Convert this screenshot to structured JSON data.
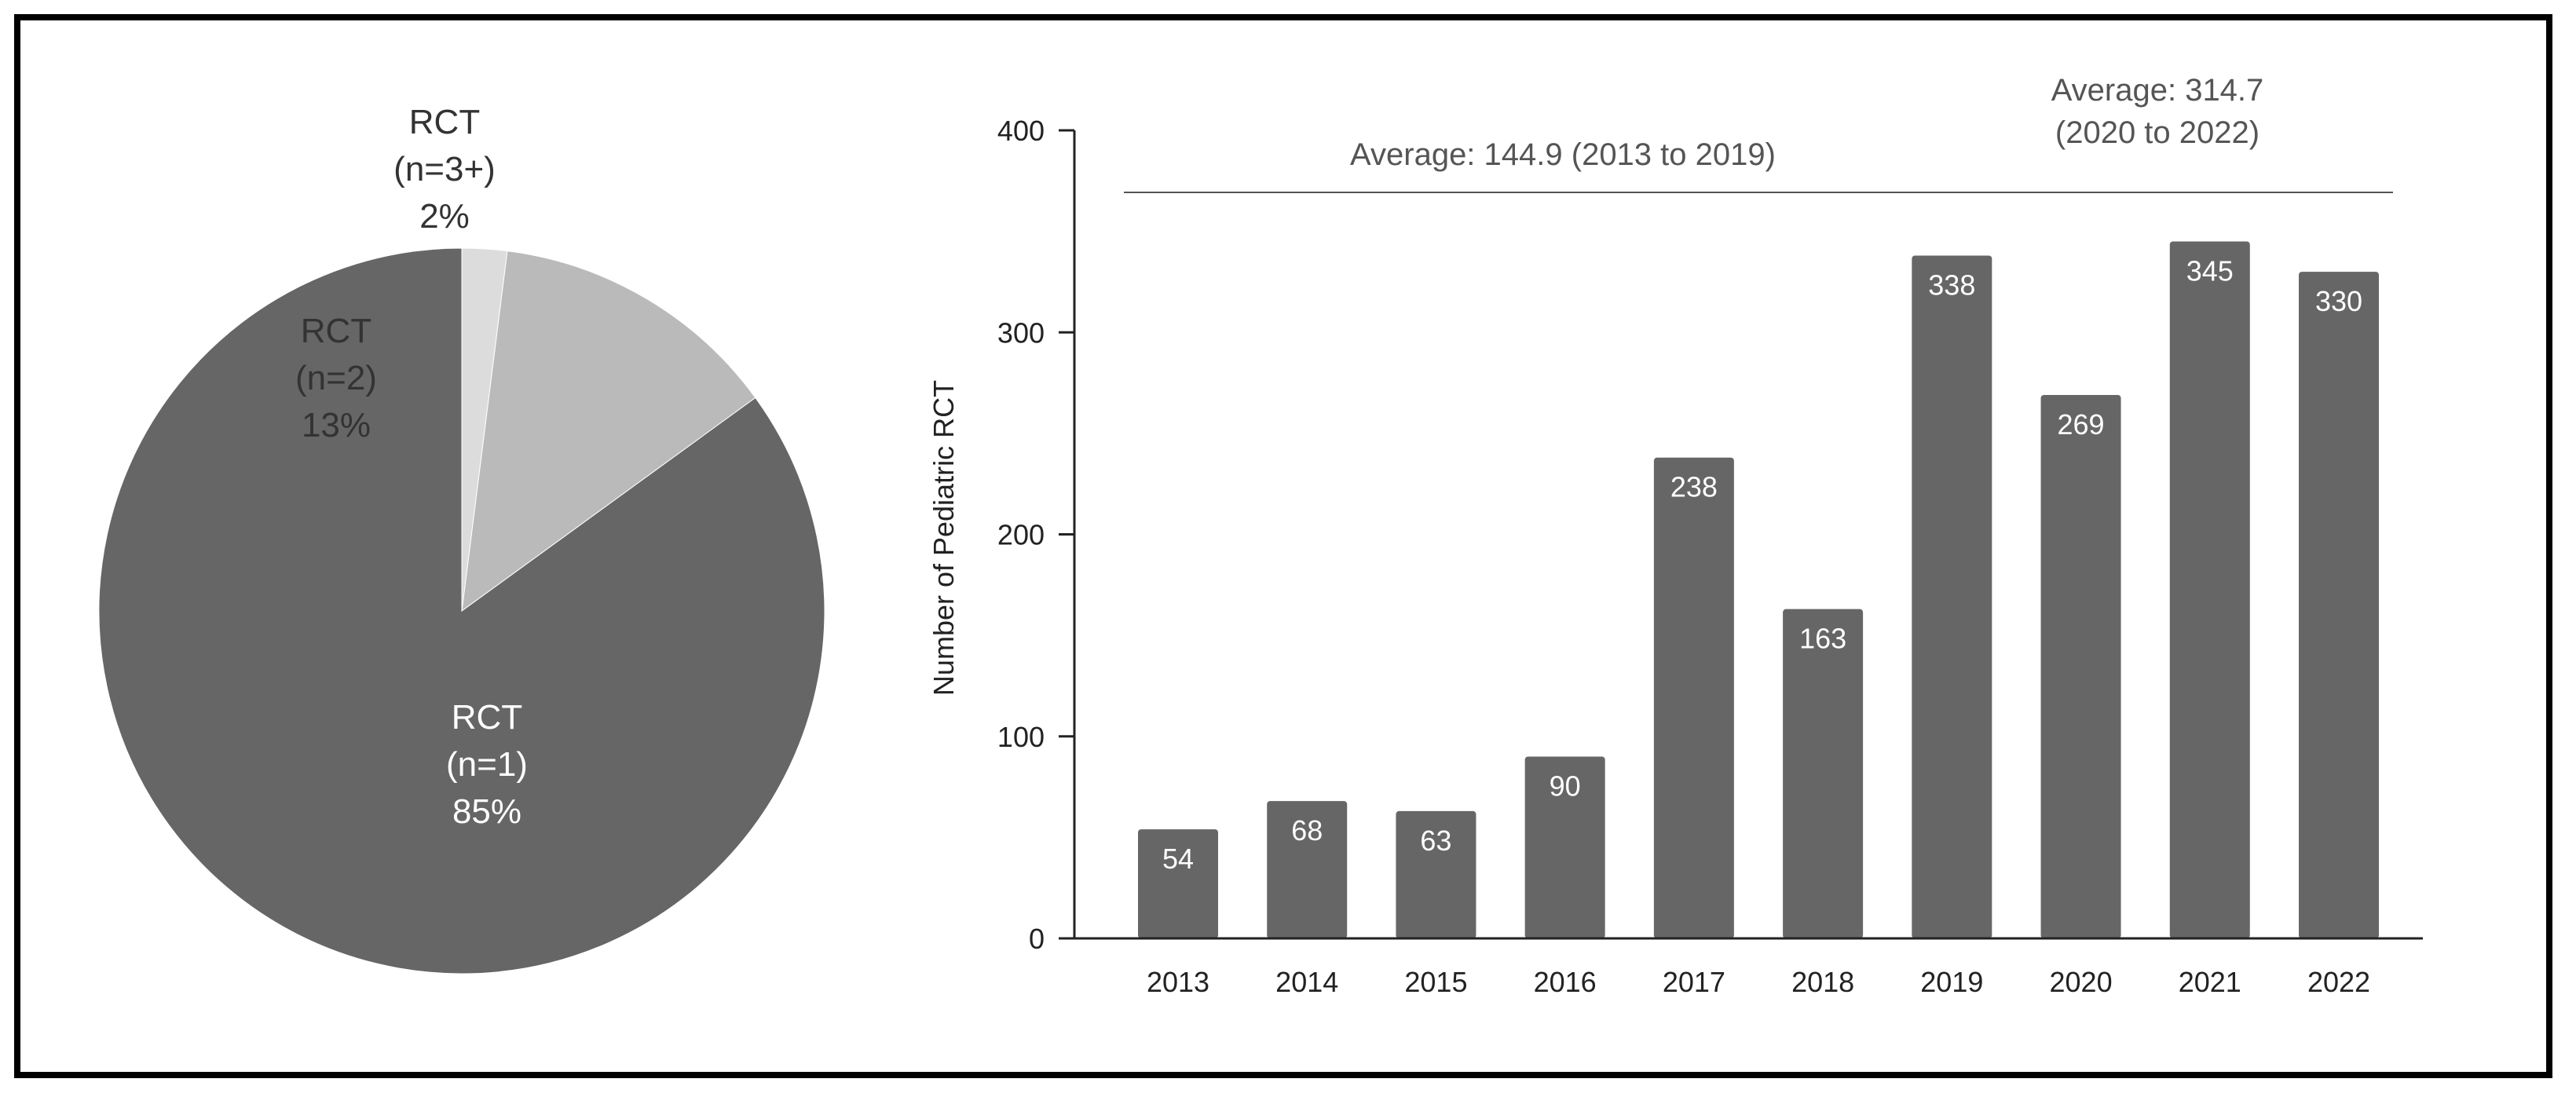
{
  "colors": {
    "bar": "#666666",
    "pie_main": "#666666",
    "pie_second": "#bababa",
    "pie_third": "#dcdcdc",
    "axis": "#222222",
    "label_dark": "#ffffff",
    "label_light": "#333333"
  },
  "chart_data": [
    {
      "type": "pie",
      "slices": [
        {
          "label": "RCT",
          "sublabel": "(n=1)",
          "pct_label": "85%",
          "value": 85
        },
        {
          "label": "RCT",
          "sublabel": "(n=2)",
          "pct_label": "13%",
          "value": 13
        },
        {
          "label": "RCT",
          "sublabel": "(n=3+)",
          "pct_label": "2%",
          "value": 2
        }
      ],
      "start": "12 o'clock",
      "direction": "counterclockwise"
    },
    {
      "type": "bar",
      "categories": [
        "2013",
        "2014",
        "2015",
        "2016",
        "2017",
        "2018",
        "2019",
        "2020",
        "2021",
        "2022"
      ],
      "values": [
        54,
        68,
        63,
        90,
        238,
        163,
        338,
        269,
        345,
        330
      ],
      "data_labels": [
        "54",
        "68",
        "63",
        "90",
        "238",
        "163",
        "338",
        "269",
        "345",
        "330"
      ],
      "ylabel": "Number of Pediatric RCT",
      "ylim": [
        0,
        400
      ],
      "yticks": [
        0,
        100,
        200,
        300,
        400
      ],
      "ytick_labels": [
        "0",
        "100",
        "200",
        "300",
        "400"
      ],
      "grid": false,
      "annotations": [
        {
          "line1": "Average: 144.9 (2013 to 2019)",
          "line2": "",
          "from": "2013",
          "to": "2019"
        },
        {
          "line1": "Average: 314.7",
          "line2": "(2020 to 2022)",
          "from": "2020",
          "to": "2022"
        }
      ]
    }
  ]
}
